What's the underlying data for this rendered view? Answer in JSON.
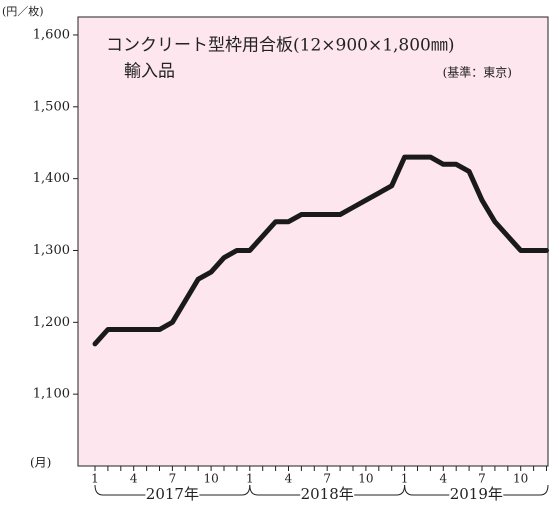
{
  "chart_data": {
    "type": "line",
    "title": "コンクリート型枠用合板(12×900×1,800㎜)",
    "subtitle": "輸入品",
    "annotation": "(基準：東京)",
    "y_unit": "(円／枚)",
    "x_unit": "(月)",
    "categories": [
      "1",
      null,
      null,
      "4",
      null,
      null,
      "7",
      null,
      null,
      "10",
      null,
      null,
      "1",
      null,
      null,
      "4",
      null,
      null,
      "7",
      null,
      null,
      "10",
      null,
      null,
      "1",
      null,
      null,
      "4",
      null,
      null,
      "7",
      null,
      null,
      "10",
      null,
      null
    ],
    "year_labels": [
      "2017年",
      "2018年",
      "2019年"
    ],
    "series": [
      {
        "color": "#1a1a1a",
        "values": [
          1170,
          1190,
          1190,
          1190,
          1190,
          1190,
          1200,
          1230,
          1260,
          1270,
          1290,
          1300,
          1300,
          1320,
          1340,
          1340,
          1350,
          1350,
          1350,
          1350,
          1360,
          1370,
          1380,
          1390,
          1430,
          1430,
          1430,
          1420,
          1420,
          1410,
          1370,
          1340,
          1320,
          1300,
          1300,
          1300
        ]
      }
    ],
    "ylim": [
      1000,
      1625
    ],
    "yticks": [
      {
        "value": 1100,
        "label": "1,100"
      },
      {
        "value": 1200,
        "label": "1,200"
      },
      {
        "value": 1300,
        "label": "1,300"
      },
      {
        "value": 1400,
        "label": "1,400"
      },
      {
        "value": 1500,
        "label": "1,500"
      },
      {
        "value": 1600,
        "label": "1,600"
      }
    ]
  }
}
